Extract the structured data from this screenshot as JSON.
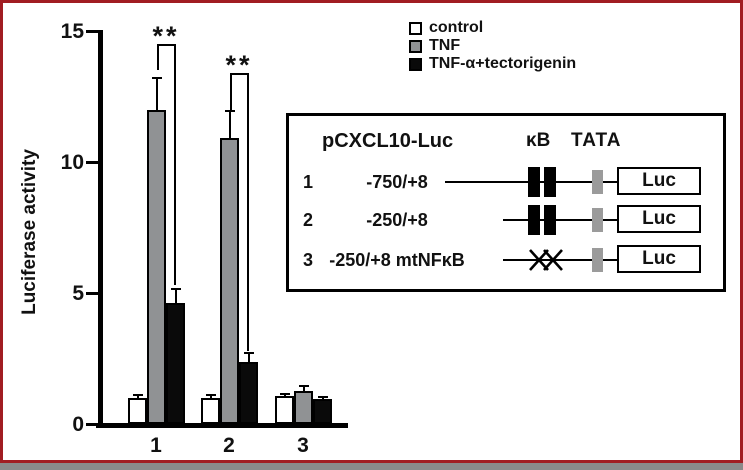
{
  "figure": {
    "border_color": "#a11d22",
    "background_color": "#ffffff",
    "outer_strip_color": "#8a8a8a"
  },
  "legend": {
    "items": [
      {
        "label": "control",
        "swatch_color": "#ffffff"
      },
      {
        "label": "TNF",
        "swatch_color": "#909294"
      },
      {
        "label": "TNF-α+tectorigenin",
        "swatch_color": "#0a0a0a"
      }
    ]
  },
  "chart_data": {
    "type": "bar",
    "title": "",
    "xlabel": "",
    "ylabel": "Luciferase activity",
    "ylim": [
      0,
      15
    ],
    "yticks": [
      "0",
      "5",
      "10",
      "15"
    ],
    "grid": false,
    "legend_position": "top-right",
    "categories": [
      "1",
      "2",
      "3"
    ],
    "series": [
      {
        "name": "control",
        "color": "#ffffff",
        "values": [
          1.0,
          1.0,
          1.05
        ],
        "errors": [
          0.1,
          0.1,
          0.1
        ]
      },
      {
        "name": "TNF",
        "color": "#909294",
        "values": [
          12.0,
          10.9,
          1.25
        ],
        "errors": [
          1.2,
          1.05,
          0.2
        ]
      },
      {
        "name": "TNF-α+tectorigenin",
        "color": "#0a0a0a",
        "values": [
          4.6,
          2.35,
          0.95
        ],
        "errors": [
          0.55,
          0.35,
          0.08
        ]
      }
    ],
    "significance": [
      {
        "category": "1",
        "label": "**",
        "from_series": "TNF",
        "to_series": "TNF-α+tectorigenin",
        "bar_y": 14.5,
        "from_drop_y": 13.5,
        "to_drop_y": 5.3
      },
      {
        "category": "2",
        "label": "**",
        "from_series": "TNF",
        "to_series": "TNF-α+tectorigenin",
        "bar_y": 13.4,
        "from_drop_y": 12.0,
        "to_drop_y": 2.8
      }
    ]
  },
  "inset": {
    "title": "pCXCL10-Luc",
    "kb_header": "κB",
    "tata_header": "TATA",
    "luc_label": "Luc",
    "rows": [
      {
        "num": "1",
        "region": "-750/+8",
        "kb": "intact",
        "line": "long"
      },
      {
        "num": "2",
        "region": "-250/+8",
        "kb": "intact",
        "line": "short"
      },
      {
        "num": "3",
        "region": "-250/+8 mtNFκB",
        "kb": "mutated",
        "line": "short"
      }
    ]
  }
}
